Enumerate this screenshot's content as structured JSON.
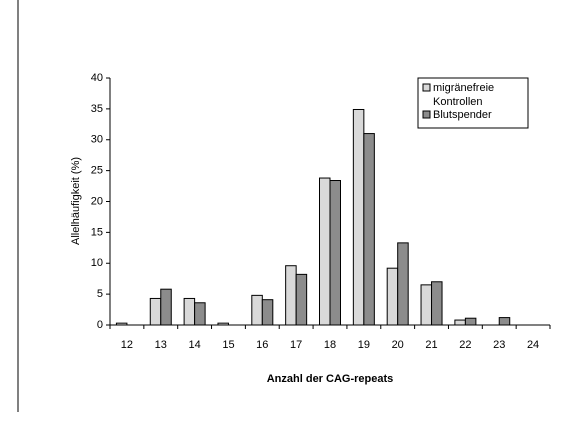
{
  "chart_data": {
    "type": "bar",
    "x_label": "Anzahl der CAG-repeats",
    "y_label": "Allelhäufigkeit (%)",
    "categories": [
      "12",
      "13",
      "14",
      "15",
      "16",
      "17",
      "18",
      "19",
      "20",
      "21",
      "22",
      "23",
      "24"
    ],
    "series": [
      {
        "name": "migränefreie Kontrollen",
        "color": "#d9d9d9",
        "values": [
          0.3,
          4.3,
          4.3,
          0.3,
          4.8,
          9.6,
          23.8,
          34.9,
          9.2,
          6.5,
          0.8,
          0,
          0
        ]
      },
      {
        "name": "Blutspender",
        "color": "#8c8c8c",
        "values": [
          0,
          5.8,
          3.6,
          0,
          4.1,
          8.2,
          23.4,
          31,
          13.3,
          7,
          1.1,
          1.2,
          0
        ]
      }
    ],
    "ylim": [
      0,
      40
    ],
    "yticks": [
      0,
      5,
      10,
      15,
      20,
      25,
      30,
      35,
      40
    ],
    "legend": "top-right"
  }
}
